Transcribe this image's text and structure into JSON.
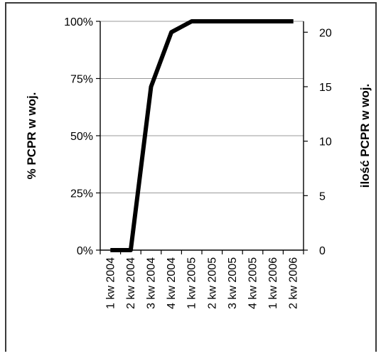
{
  "chart_data": {
    "type": "line",
    "categories": [
      "1 kw 2004",
      "2 kw 2004",
      "3 kw 2004",
      "4 kw 2004",
      "1 kw 2005",
      "2 kw 2005",
      "3 kw 2005",
      "4 kw 2005",
      "1 kw 2006",
      "2 kw 2006"
    ],
    "series": [
      {
        "axis": "right",
        "values": [
          0,
          0,
          15,
          20,
          21,
          21,
          21,
          21,
          21,
          21
        ],
        "color": "#000000"
      }
    ],
    "y_left": {
      "label": "% PCPR w woj.",
      "ticks": [
        "0%",
        "25%",
        "50%",
        "75%",
        "100%"
      ],
      "ylim": [
        0,
        1
      ]
    },
    "y_right": {
      "label": "ilość PCPR w woj.",
      "ticks": [
        "0",
        "5",
        "10",
        "15",
        "20"
      ],
      "ylim": [
        0,
        21
      ]
    },
    "grid": true,
    "legend": "none"
  }
}
